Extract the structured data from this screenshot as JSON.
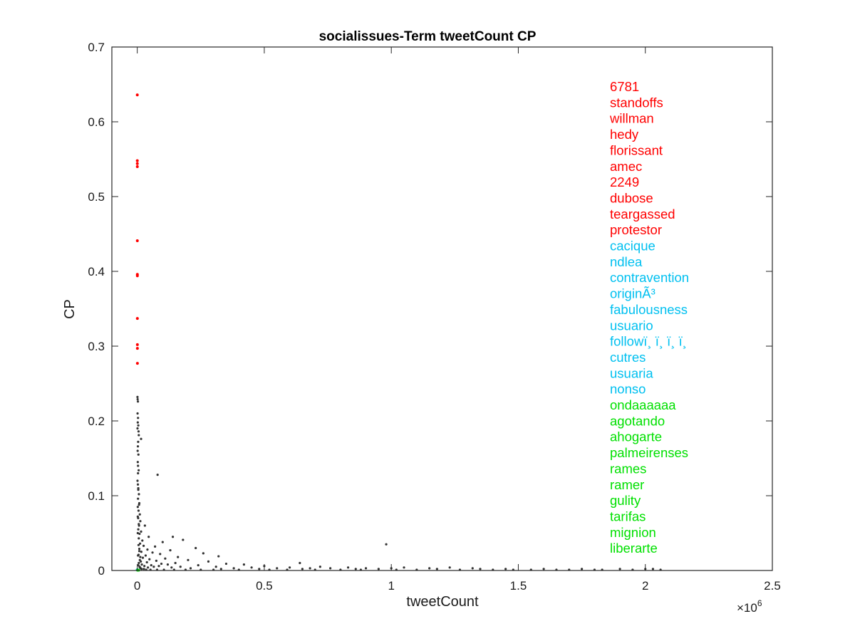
{
  "chart_data": {
    "type": "scatter",
    "title": "socialissues-Term tweetCount CP",
    "xlabel": "tweetCount",
    "ylabel": "CP",
    "x_exponent_label": "×10",
    "x_exponent_power": "6",
    "x_scale": 1000000,
    "xlim": [
      -100000,
      2500000
    ],
    "ylim": [
      0,
      0.7
    ],
    "xticks": [
      0,
      500000,
      1000000,
      1500000,
      2000000,
      2500000
    ],
    "xtick_labels": [
      "0",
      "0.5",
      "1",
      "1.5",
      "2",
      "2.5"
    ],
    "yticks": [
      0,
      0.1,
      0.2,
      0.3,
      0.4,
      0.5,
      0.6,
      0.7
    ],
    "ytick_labels": [
      "0",
      "0.1",
      "0.2",
      "0.3",
      "0.4",
      "0.5",
      "0.6",
      "0.7"
    ],
    "grid": false,
    "colors": {
      "top": "#ff0000",
      "middle": "#00c0f0",
      "bottom": "#00e000",
      "other": "#333333"
    },
    "series": [
      {
        "group": "top",
        "color": "#ff0000",
        "points": [
          [
            100,
            0.636
          ],
          [
            150,
            0.548
          ],
          [
            200,
            0.544
          ],
          [
            250,
            0.54
          ],
          [
            300,
            0.441
          ],
          [
            350,
            0.396
          ],
          [
            400,
            0.394
          ],
          [
            450,
            0.337
          ],
          [
            500,
            0.302
          ],
          [
            550,
            0.297
          ],
          [
            600,
            0.277
          ]
        ]
      },
      {
        "group": "middle",
        "color": "#00c0f0",
        "points": [
          [
            100,
            0.0008
          ],
          [
            200,
            0.0008
          ],
          [
            300,
            0.0008
          ],
          [
            400,
            0.0008
          ],
          [
            500,
            0.0008
          ]
        ]
      },
      {
        "group": "bottom",
        "color": "#00e000",
        "points": [
          [
            1000,
            0.0005
          ],
          [
            1500,
            0.0005
          ],
          [
            2000,
            0.0005
          ],
          [
            2500,
            0.0005
          ],
          [
            3000,
            0.0005
          ],
          [
            3500,
            0.0005
          ],
          [
            4000,
            0.0005
          ],
          [
            4500,
            0.0005
          ],
          [
            5000,
            0.0005
          ],
          [
            5500,
            0.0005
          ]
        ]
      },
      {
        "group": "other",
        "color": "#333333",
        "points": [
          [
            800,
            0.232
          ],
          [
            1500,
            0.229
          ],
          [
            2500,
            0.226
          ],
          [
            1200,
            0.21
          ],
          [
            3000,
            0.204
          ],
          [
            2000,
            0.198
          ],
          [
            4000,
            0.194
          ],
          [
            1000,
            0.19
          ],
          [
            5000,
            0.186
          ],
          [
            6000,
            0.181
          ],
          [
            15000,
            0.176
          ],
          [
            3500,
            0.172
          ],
          [
            2500,
            0.166
          ],
          [
            1500,
            0.16
          ],
          [
            4500,
            0.155
          ],
          [
            2000,
            0.145
          ],
          [
            3000,
            0.14
          ],
          [
            5500,
            0.134
          ],
          [
            80000,
            0.128
          ],
          [
            1000,
            0.12
          ],
          [
            2500,
            0.115
          ],
          [
            4000,
            0.108
          ],
          [
            6500,
            0.102
          ],
          [
            3000,
            0.096
          ],
          [
            8000,
            0.09
          ],
          [
            2000,
            0.085
          ],
          [
            5000,
            0.08
          ],
          [
            10000,
            0.075
          ],
          [
            3500,
            0.07
          ],
          [
            12000,
            0.066
          ],
          [
            7000,
            0.06
          ],
          [
            30000,
            0.06
          ],
          [
            4000,
            0.055
          ],
          [
            15000,
            0.052
          ],
          [
            9000,
            0.049
          ],
          [
            45000,
            0.045
          ],
          [
            140000,
            0.045
          ],
          [
            6000,
            0.043
          ],
          [
            20000,
            0.04
          ],
          [
            180000,
            0.041
          ],
          [
            100000,
            0.038
          ],
          [
            11000,
            0.036
          ],
          [
            980000,
            0.035
          ],
          [
            25000,
            0.033
          ],
          [
            70000,
            0.032
          ],
          [
            230000,
            0.03
          ],
          [
            8000,
            0.029
          ],
          [
            40000,
            0.028
          ],
          [
            130000,
            0.027
          ],
          [
            16000,
            0.025
          ],
          [
            60000,
            0.024
          ],
          [
            260000,
            0.023
          ],
          [
            90000,
            0.022
          ],
          [
            5000,
            0.021
          ],
          [
            33000,
            0.02
          ],
          [
            320000,
            0.019
          ],
          [
            160000,
            0.018
          ],
          [
            22000,
            0.017
          ],
          [
            110000,
            0.016
          ],
          [
            48000,
            0.015
          ],
          [
            200000,
            0.014
          ],
          [
            75000,
            0.013
          ],
          [
            14000,
            0.012
          ],
          [
            280000,
            0.012
          ],
          [
            38000,
            0.011
          ],
          [
            150000,
            0.01
          ],
          [
            95000,
            0.009
          ],
          [
            350000,
            0.009
          ],
          [
            640000,
            0.01
          ],
          [
            18000,
            0.008
          ],
          [
            120000,
            0.008
          ],
          [
            55000,
            0.007
          ],
          [
            420000,
            0.008
          ],
          [
            240000,
            0.007
          ],
          [
            28000,
            0.006
          ],
          [
            85000,
            0.006
          ],
          [
            500000,
            0.006
          ],
          [
            170000,
            0.005
          ],
          [
            310000,
            0.005
          ],
          [
            720000,
            0.005
          ],
          [
            42000,
            0.004
          ],
          [
            450000,
            0.004
          ],
          [
            600000,
            0.004
          ],
          [
            830000,
            0.004
          ],
          [
            1050000,
            0.004
          ],
          [
            1230000,
            0.004
          ],
          [
            380000,
            0.003
          ],
          [
            550000,
            0.003
          ],
          [
            680000,
            0.003
          ],
          [
            760000,
            0.003
          ],
          [
            900000,
            0.003
          ],
          [
            1000000,
            0.003
          ],
          [
            1150000,
            0.003
          ],
          [
            1320000,
            0.003
          ],
          [
            1450000,
            0.002
          ],
          [
            1600000,
            0.002
          ],
          [
            1750000,
            0.002
          ],
          [
            1900000,
            0.002
          ],
          [
            2000000,
            0.002
          ],
          [
            2060000,
            0.001
          ],
          [
            1830000,
            0.001
          ],
          [
            1700000,
            0.001
          ],
          [
            1550000,
            0.001
          ],
          [
            1400000,
            0.001
          ],
          [
            1270000,
            0.001
          ],
          [
            1100000,
            0.001
          ],
          [
            950000,
            0.002
          ],
          [
            860000,
            0.002
          ],
          [
            650000,
            0.002
          ],
          [
            480000,
            0.002
          ],
          [
            330000,
            0.002
          ],
          [
            210000,
            0.003
          ],
          [
            135000,
            0.004
          ],
          [
            65000,
            0.005
          ],
          [
            9000,
            0.005
          ],
          [
            12000,
            0.018
          ],
          [
            6000,
            0.062
          ],
          [
            2000,
            0.072
          ],
          [
            4000,
            0.11
          ],
          [
            3000,
            0.13
          ],
          [
            7000,
            0.088
          ],
          [
            2000,
            0.05
          ],
          [
            5000,
            0.034
          ],
          [
            8000,
            0.026
          ],
          [
            3000,
            0.02
          ],
          [
            10000,
            0.014
          ],
          [
            6000,
            0.01
          ],
          [
            4000,
            0.007
          ],
          [
            11000,
            0.004
          ],
          [
            13000,
            0.003
          ],
          [
            17000,
            0.002
          ],
          [
            26000,
            0.002
          ],
          [
            35000,
            0.001
          ],
          [
            52000,
            0.001
          ],
          [
            78000,
            0.001
          ],
          [
            105000,
            0.001
          ],
          [
            145000,
            0.001
          ],
          [
            190000,
            0.001
          ],
          [
            250000,
            0.001
          ],
          [
            300000,
            0.001
          ],
          [
            400000,
            0.001
          ],
          [
            520000,
            0.001
          ],
          [
            590000,
            0.001
          ],
          [
            700000,
            0.001
          ],
          [
            800000,
            0.001
          ],
          [
            880000,
            0.001
          ],
          [
            1020000,
            0.001
          ],
          [
            1180000,
            0.002
          ],
          [
            1350000,
            0.002
          ],
          [
            1480000,
            0.001
          ],
          [
            1650000,
            0.001
          ],
          [
            1800000,
            0.001
          ],
          [
            1950000,
            0.001
          ],
          [
            2030000,
            0.002
          ]
        ]
      }
    ],
    "legend_words": [
      {
        "text": "6781",
        "group": "top"
      },
      {
        "text": "standoffs",
        "group": "top"
      },
      {
        "text": "willman",
        "group": "top"
      },
      {
        "text": "hedy",
        "group": "top"
      },
      {
        "text": "florissant",
        "group": "top"
      },
      {
        "text": "amec",
        "group": "top"
      },
      {
        "text": "2249",
        "group": "top"
      },
      {
        "text": "dubose",
        "group": "top"
      },
      {
        "text": "teargassed",
        "group": "top"
      },
      {
        "text": "protestor",
        "group": "top"
      },
      {
        "text": "cacique",
        "group": "middle"
      },
      {
        "text": "ndlea",
        "group": "middle"
      },
      {
        "text": "contravention",
        "group": "middle"
      },
      {
        "text": "originÃ³",
        "group": "middle"
      },
      {
        "text": "fabulousness",
        "group": "middle"
      },
      {
        "text": "usuario",
        "group": "middle"
      },
      {
        "text": "followï¸ ï¸ ï¸ ï¸",
        "group": "middle"
      },
      {
        "text": "cutres",
        "group": "middle"
      },
      {
        "text": "usuaria",
        "group": "middle"
      },
      {
        "text": "nonso",
        "group": "middle"
      },
      {
        "text": "ondaaaaaa",
        "group": "bottom"
      },
      {
        "text": "agotando",
        "group": "bottom"
      },
      {
        "text": "ahogarte",
        "group": "bottom"
      },
      {
        "text": "palmeirenses",
        "group": "bottom"
      },
      {
        "text": "rames",
        "group": "bottom"
      },
      {
        "text": "ramer",
        "group": "bottom"
      },
      {
        "text": "gulity",
        "group": "bottom"
      },
      {
        "text": "tarifas",
        "group": "bottom"
      },
      {
        "text": "mignion",
        "group": "bottom"
      },
      {
        "text": "liberarte",
        "group": "bottom"
      }
    ]
  }
}
